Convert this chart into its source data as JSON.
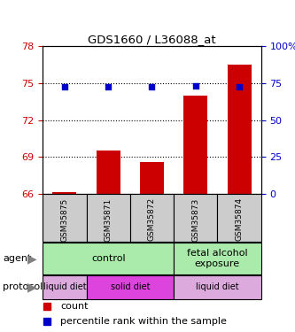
{
  "title": "GDS1660 / L36088_at",
  "samples": [
    "GSM35875",
    "GSM35871",
    "GSM35872",
    "GSM35873",
    "GSM35874"
  ],
  "bar_values": [
    66.15,
    69.5,
    68.6,
    74.0,
    76.5
  ],
  "bar_bottom": 66.0,
  "percentile_values": [
    72.5,
    72.5,
    72.5,
    73.1,
    72.5
  ],
  "left_yticks": [
    66,
    69,
    72,
    75,
    78
  ],
  "right_yticks": [
    0,
    25,
    50,
    75,
    100
  ],
  "ylim": [
    66,
    78
  ],
  "right_ylim": [
    0,
    100
  ],
  "bar_color": "#cc0000",
  "percentile_color": "#0000cc",
  "agent_labels": [
    {
      "text": "control",
      "span": [
        0,
        3
      ],
      "color": "#aaeaaa"
    },
    {
      "text": "fetal alcohol\nexposure",
      "span": [
        3,
        5
      ],
      "color": "#aaeaaa"
    }
  ],
  "protocol_labels": [
    {
      "text": "liquid diet",
      "span": [
        0,
        1
      ],
      "color": "#ddaadd"
    },
    {
      "text": "solid diet",
      "span": [
        1,
        3
      ],
      "color": "#dd44dd"
    },
    {
      "text": "liquid diet",
      "span": [
        3,
        5
      ],
      "color": "#ddaadd"
    }
  ],
  "agent_row_label": "agent",
  "protocol_row_label": "protocol",
  "legend_count_label": "count",
  "legend_percentile_label": "percentile rank within the sample",
  "sample_box_color": "#cccccc",
  "dotted_lines": [
    69,
    72,
    75
  ],
  "left_color": "#cc0000",
  "right_color": "#0000cc"
}
